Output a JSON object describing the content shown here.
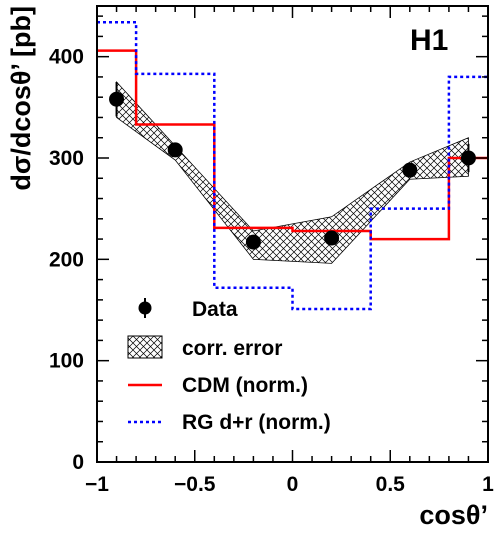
{
  "chart_data": {
    "type": "line",
    "xlabel": "cosθ’",
    "ylabel": "dσ/dcosθ’ [pb]",
    "experiment_label": "H1",
    "xlim": [
      -1,
      1
    ],
    "ylim": [
      0,
      450
    ],
    "x_ticks": [
      -1,
      -0.5,
      0,
      0.5,
      1
    ],
    "x_tick_labels": [
      "−1",
      "−0.5",
      "0",
      "0.5",
      "1"
    ],
    "y_ticks": [
      0,
      100,
      200,
      300,
      400
    ],
    "y_tick_labels": [
      "0",
      "100",
      "200",
      "300",
      "400"
    ],
    "legend": {
      "position": "bottom-left",
      "items": [
        {
          "key": "data",
          "label": "Data"
        },
        {
          "key": "band",
          "label": "corr. error"
        },
        {
          "key": "cdm",
          "label": "CDM (norm.)"
        },
        {
          "key": "rg",
          "label": "RG d+r (norm.)"
        }
      ]
    },
    "data_points": [
      {
        "x": -0.9,
        "y": 358,
        "err": 17
      },
      {
        "x": -0.6,
        "y": 308,
        "err": 0
      },
      {
        "x": -0.2,
        "y": 217,
        "err": 0
      },
      {
        "x": 0.2,
        "y": 221,
        "err": 0
      },
      {
        "x": 0.6,
        "y": 288,
        "err": 0
      },
      {
        "x": 0.9,
        "y": 300,
        "err": 14
      }
    ],
    "band": {
      "x": [
        -0.9,
        -0.6,
        -0.2,
        0.2,
        0.6,
        0.9
      ],
      "upper": [
        375,
        312,
        228,
        242,
        296,
        320
      ],
      "lower": [
        340,
        298,
        200,
        196,
        279,
        282
      ]
    },
    "series": [
      {
        "name": "CDM (norm.)",
        "color": "#ff0000",
        "style": "solid",
        "bins": [
          {
            "x0": -1.0,
            "x1": -0.8,
            "y": 406
          },
          {
            "x0": -0.8,
            "x1": -0.4,
            "y": 333
          },
          {
            "x0": -0.4,
            "x1": 0.0,
            "y": 231
          },
          {
            "x0": 0.0,
            "x1": 0.4,
            "y": 228
          },
          {
            "x0": 0.4,
            "x1": 0.8,
            "y": 220
          },
          {
            "x0": 0.8,
            "x1": 1.0,
            "y": 300
          }
        ]
      },
      {
        "name": "RG d+r (norm.)",
        "color": "#0000ff",
        "style": "dotted",
        "bins": [
          {
            "x0": -1.0,
            "x1": -0.8,
            "y": 434
          },
          {
            "x0": -0.8,
            "x1": -0.4,
            "y": 383
          },
          {
            "x0": -0.4,
            "x1": 0.0,
            "y": 172
          },
          {
            "x0": 0.0,
            "x1": 0.4,
            "y": 151
          },
          {
            "x0": 0.4,
            "x1": 0.8,
            "y": 250
          },
          {
            "x0": 0.8,
            "x1": 1.0,
            "y": 380
          }
        ]
      }
    ]
  }
}
